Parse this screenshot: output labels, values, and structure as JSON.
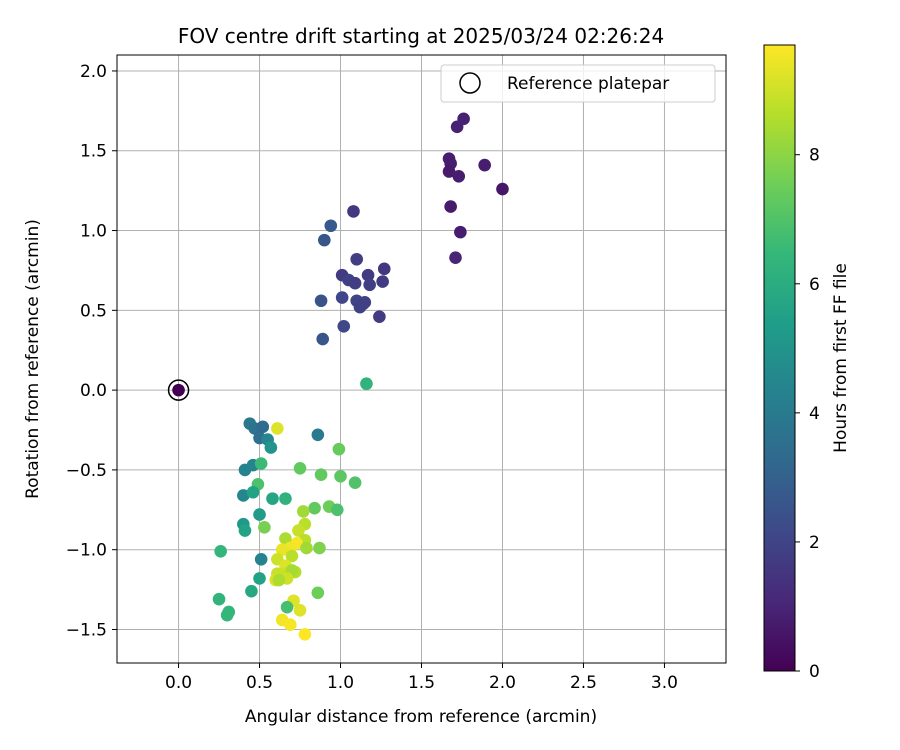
{
  "chart_data": {
    "type": "scatter",
    "title": "FOV centre drift starting at 2025/03/24 02:26:24",
    "xlabel": "Angular distance from reference (arcmin)",
    "ylabel": "Rotation from reference (arcmin)",
    "xlim": [
      -0.38,
      3.38
    ],
    "ylim": [
      -1.71,
      2.1
    ],
    "xticks": [
      0.0,
      0.5,
      1.0,
      1.5,
      2.0,
      2.5,
      3.0
    ],
    "xtick_labels": [
      "0.0",
      "0.5",
      "1.0",
      "1.5",
      "2.0",
      "2.5",
      "3.0"
    ],
    "yticks": [
      -1.5,
      -1.0,
      -0.5,
      0.0,
      0.5,
      1.0,
      1.5,
      2.0
    ],
    "ytick_labels": [
      "−1.5",
      "−1.0",
      "−0.5",
      "0.0",
      "0.5",
      "1.0",
      "1.5",
      "2.0"
    ],
    "grid": true,
    "legend": {
      "placement": "top-right",
      "entries": [
        "Reference platepar"
      ]
    },
    "reference_point": {
      "x": 0.0,
      "y": 0.0,
      "name": "Reference platepar",
      "marker": "open-circle"
    },
    "colorbar": {
      "label": "Hours from first FF file",
      "colormap": "viridis",
      "range": [
        0,
        9.7
      ],
      "ticks": [
        0,
        2,
        4,
        6,
        8
      ],
      "tick_labels": [
        "0",
        "2",
        "4",
        "6",
        "8"
      ],
      "colors": [
        "#440154",
        "#482878",
        "#3e4989",
        "#31688e",
        "#26828e",
        "#1f9e89",
        "#35b779",
        "#6ece58",
        "#b5de2b",
        "#fde725"
      ]
    },
    "series": [
      {
        "x": [
          0.0,
          1.76,
          1.72,
          1.67,
          1.68,
          1.67,
          1.89,
          1.73,
          2.0,
          1.68,
          1.74,
          1.71,
          1.08,
          0.94,
          0.9,
          1.1,
          1.01,
          1.05,
          1.09,
          1.17,
          1.27,
          1.18,
          1.26,
          1.01,
          1.1,
          1.14,
          1.12,
          1.15,
          1.24,
          0.88,
          1.02,
          0.89,
          1.16,
          0.44,
          0.47,
          0.52,
          0.5,
          0.55,
          0.57,
          0.61,
          0.86,
          0.41,
          0.46,
          0.51,
          0.4,
          0.49,
          0.46,
          0.58,
          0.66,
          0.5,
          0.4,
          0.41,
          0.53,
          0.75,
          0.88,
          0.99,
          1.0,
          1.09,
          0.93,
          0.84,
          0.98,
          0.77,
          0.78,
          0.66,
          0.74,
          0.78,
          0.73,
          0.69,
          0.64,
          0.79,
          0.87,
          0.61,
          0.7,
          0.66,
          0.65,
          0.67,
          0.72,
          0.7,
          0.26,
          0.51,
          0.61,
          0.6,
          0.67,
          0.62,
          0.5,
          0.45,
          0.25,
          0.31,
          0.3,
          0.71,
          0.67,
          0.86,
          0.75,
          0.64,
          0.69,
          0.78
        ],
        "y": [
          0.0,
          1.7,
          1.65,
          1.45,
          1.42,
          1.37,
          1.41,
          1.34,
          1.26,
          1.15,
          0.99,
          0.83,
          1.12,
          1.03,
          0.94,
          0.82,
          0.72,
          0.69,
          0.67,
          0.72,
          0.76,
          0.66,
          0.68,
          0.58,
          0.56,
          0.54,
          0.52,
          0.55,
          0.46,
          0.56,
          0.4,
          0.32,
          0.04,
          -0.21,
          -0.24,
          -0.23,
          -0.3,
          -0.31,
          -0.36,
          -0.24,
          -0.28,
          -0.5,
          -0.47,
          -0.46,
          -0.66,
          -0.59,
          -0.64,
          -0.68,
          -0.68,
          -0.78,
          -0.84,
          -0.88,
          -0.86,
          -0.49,
          -0.53,
          -0.37,
          -0.54,
          -0.58,
          -0.73,
          -0.74,
          -0.75,
          -0.76,
          -0.84,
          -0.93,
          -0.88,
          -0.94,
          -0.96,
          -0.99,
          -1.0,
          -0.99,
          -0.99,
          -1.06,
          -1.04,
          -1.1,
          -1.15,
          -1.17,
          -1.14,
          -1.13,
          -1.01,
          -1.06,
          -1.15,
          -1.19,
          -1.18,
          -1.19,
          -1.18,
          -1.26,
          -1.31,
          -1.39,
          -1.41,
          -1.32,
          -1.36,
          -1.27,
          -1.38,
          -1.44,
          -1.47,
          -1.53
        ],
        "hours": [
          0.0,
          0.9,
          0.9,
          0.8,
          0.8,
          0.7,
          0.8,
          0.8,
          0.6,
          0.7,
          0.8,
          1.0,
          1.6,
          2.7,
          2.6,
          1.8,
          1.7,
          1.9,
          1.8,
          1.7,
          1.6,
          1.8,
          1.7,
          2.1,
          2.0,
          1.8,
          1.9,
          1.9,
          1.7,
          2.5,
          2.1,
          2.6,
          6.3,
          3.9,
          3.7,
          3.3,
          3.5,
          4.5,
          5.0,
          9.2,
          4.0,
          4.3,
          4.4,
          6.6,
          4.5,
          6.9,
          5.6,
          5.7,
          6.2,
          5.3,
          5.2,
          5.6,
          7.7,
          7.3,
          7.3,
          7.4,
          7.2,
          7.0,
          7.5,
          7.3,
          6.9,
          8.3,
          8.7,
          8.5,
          8.9,
          8.7,
          9.6,
          9.5,
          9.4,
          8.3,
          7.8,
          9.0,
          8.7,
          9.2,
          9.0,
          8.8,
          8.6,
          8.4,
          6.4,
          4.3,
          8.9,
          9.1,
          9.0,
          8.5,
          5.6,
          5.8,
          6.3,
          6.4,
          6.4,
          9.2,
          6.8,
          7.5,
          9.2,
          9.5,
          9.6,
          9.7
        ]
      }
    ]
  }
}
